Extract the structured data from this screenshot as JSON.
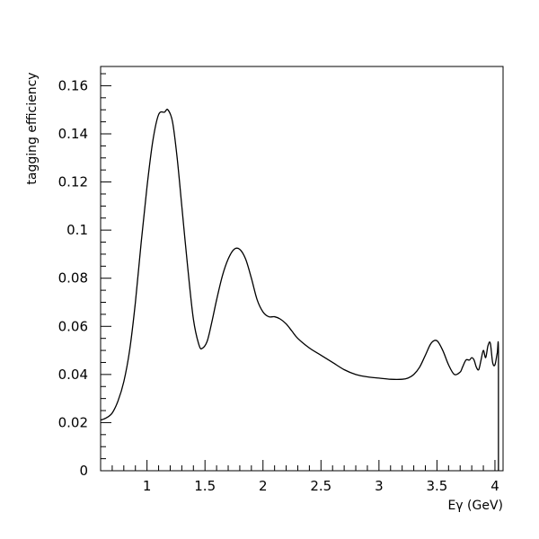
{
  "chart_data": {
    "type": "line",
    "title": "",
    "xlabel": "Eγ (GeV)",
    "ylabel": "tagging efficiency",
    "xlim": [
      0.6,
      4.07
    ],
    "ylim": [
      0,
      0.168
    ],
    "x_ticks": [
      {
        "value": 1,
        "label": "1"
      },
      {
        "value": 1.5,
        "label": "1.5"
      },
      {
        "value": 2,
        "label": "2"
      },
      {
        "value": 2.5,
        "label": "2.5"
      },
      {
        "value": 3,
        "label": "3"
      },
      {
        "value": 3.5,
        "label": "3.5"
      },
      {
        "value": 4,
        "label": "4"
      }
    ],
    "y_ticks": [
      {
        "value": 0,
        "label": "0"
      },
      {
        "value": 0.02,
        "label": "0.02"
      },
      {
        "value": 0.04,
        "label": "0.04"
      },
      {
        "value": 0.06,
        "label": "0.06"
      },
      {
        "value": 0.08,
        "label": "0.08"
      },
      {
        "value": 0.1,
        "label": "0.1"
      },
      {
        "value": 0.12,
        "label": "0.12"
      },
      {
        "value": 0.14,
        "label": "0.14"
      },
      {
        "value": 0.16,
        "label": "0.16"
      }
    ],
    "grid": false,
    "legend": "none",
    "series": [
      {
        "color": "#000000",
        "x": [
          0.6,
          0.65,
          0.7,
          0.75,
          0.8,
          0.85,
          0.9,
          0.95,
          1.0,
          1.05,
          1.1,
          1.15,
          1.18,
          1.22,
          1.26,
          1.3,
          1.35,
          1.4,
          1.45,
          1.48,
          1.52,
          1.56,
          1.6,
          1.65,
          1.7,
          1.75,
          1.8,
          1.85,
          1.9,
          1.95,
          2.0,
          2.05,
          2.1,
          2.15,
          2.2,
          2.25,
          2.3,
          2.4,
          2.5,
          2.6,
          2.7,
          2.8,
          2.9,
          3.0,
          3.1,
          3.2,
          3.25,
          3.3,
          3.35,
          3.4,
          3.45,
          3.5,
          3.55,
          3.6,
          3.65,
          3.7,
          3.72,
          3.75,
          3.78,
          3.8,
          3.82,
          3.84,
          3.86,
          3.88,
          3.9,
          3.92,
          3.94,
          3.96,
          3.98,
          4.0,
          4.02,
          4.03,
          4.03
        ],
        "y": [
          0.021,
          0.022,
          0.024,
          0.029,
          0.037,
          0.05,
          0.07,
          0.095,
          0.118,
          0.137,
          0.148,
          0.149,
          0.15,
          0.145,
          0.13,
          0.11,
          0.085,
          0.063,
          0.052,
          0.051,
          0.054,
          0.062,
          0.071,
          0.081,
          0.088,
          0.092,
          0.092,
          0.088,
          0.08,
          0.071,
          0.066,
          0.064,
          0.064,
          0.063,
          0.061,
          0.058,
          0.055,
          0.051,
          0.048,
          0.045,
          0.042,
          0.04,
          0.039,
          0.0385,
          0.038,
          0.038,
          0.0385,
          0.04,
          0.043,
          0.048,
          0.053,
          0.054,
          0.05,
          0.044,
          0.04,
          0.041,
          0.043,
          0.046,
          0.046,
          0.047,
          0.046,
          0.043,
          0.042,
          0.046,
          0.05,
          0.047,
          0.052,
          0.053,
          0.045,
          0.044,
          0.049,
          0.05,
          0.0
        ]
      }
    ]
  }
}
